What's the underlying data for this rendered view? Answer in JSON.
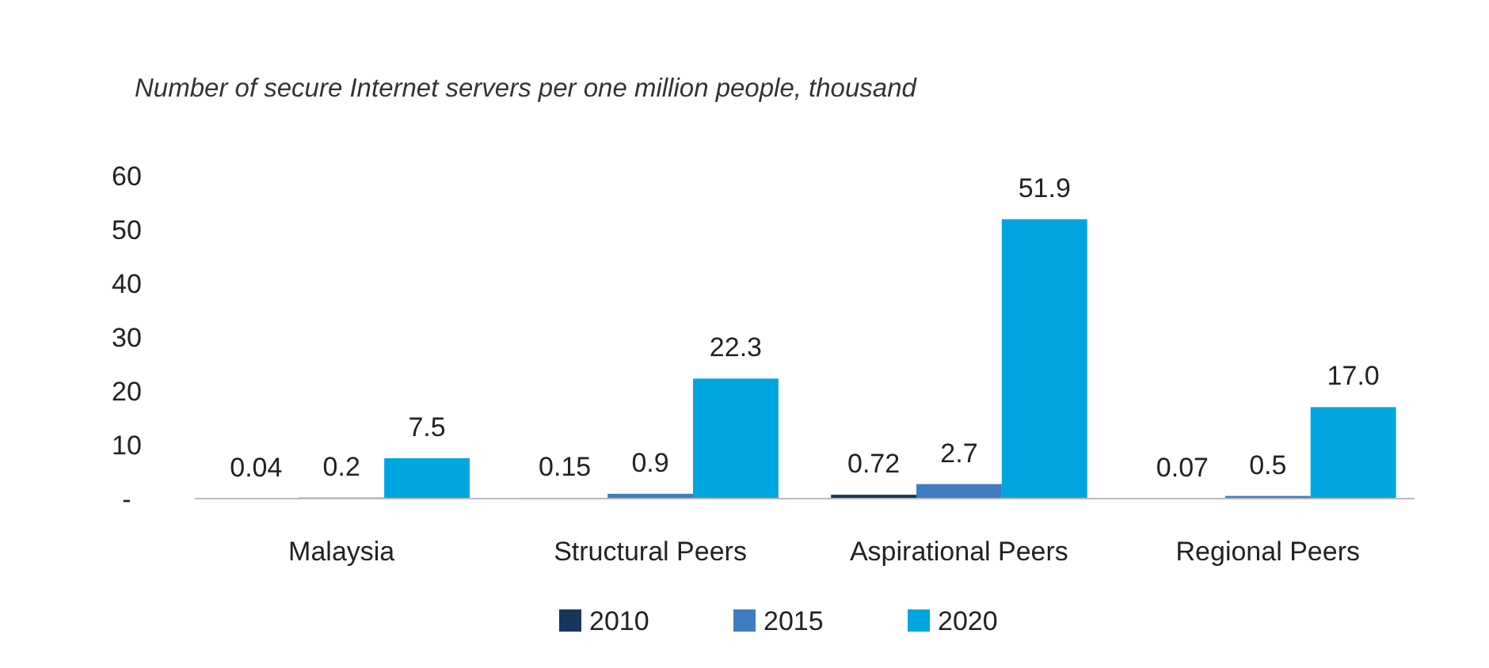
{
  "chart_data": {
    "type": "bar",
    "title": "Number of secure Internet servers per one million people, thousand",
    "categories": [
      "Malaysia",
      "Structural Peers",
      "Aspirational Peers",
      "Regional Peers"
    ],
    "series": [
      {
        "name": "2010",
        "color": "#16365c",
        "values": [
          0.04,
          0.15,
          0.72,
          0.07
        ],
        "value_labels": [
          "0.04",
          "0.15",
          "0.72",
          "0.07"
        ]
      },
      {
        "name": "2015",
        "color": "#3f7cc2",
        "values": [
          0.2,
          0.9,
          2.7,
          0.5
        ],
        "value_labels": [
          "0.2",
          "0.9",
          "2.7",
          "0.5"
        ]
      },
      {
        "name": "2020",
        "color": "#00a6e0",
        "values": [
          7.5,
          22.3,
          51.9,
          17.0
        ],
        "value_labels": [
          "7.5",
          "22.3",
          "51.9",
          "17.0"
        ]
      }
    ],
    "ylim": [
      0,
      60
    ],
    "yticks": [
      {
        "value": 0,
        "label": "-"
      },
      10,
      20,
      30,
      40,
      50,
      60
    ],
    "grid": false,
    "legend": "bottom"
  }
}
